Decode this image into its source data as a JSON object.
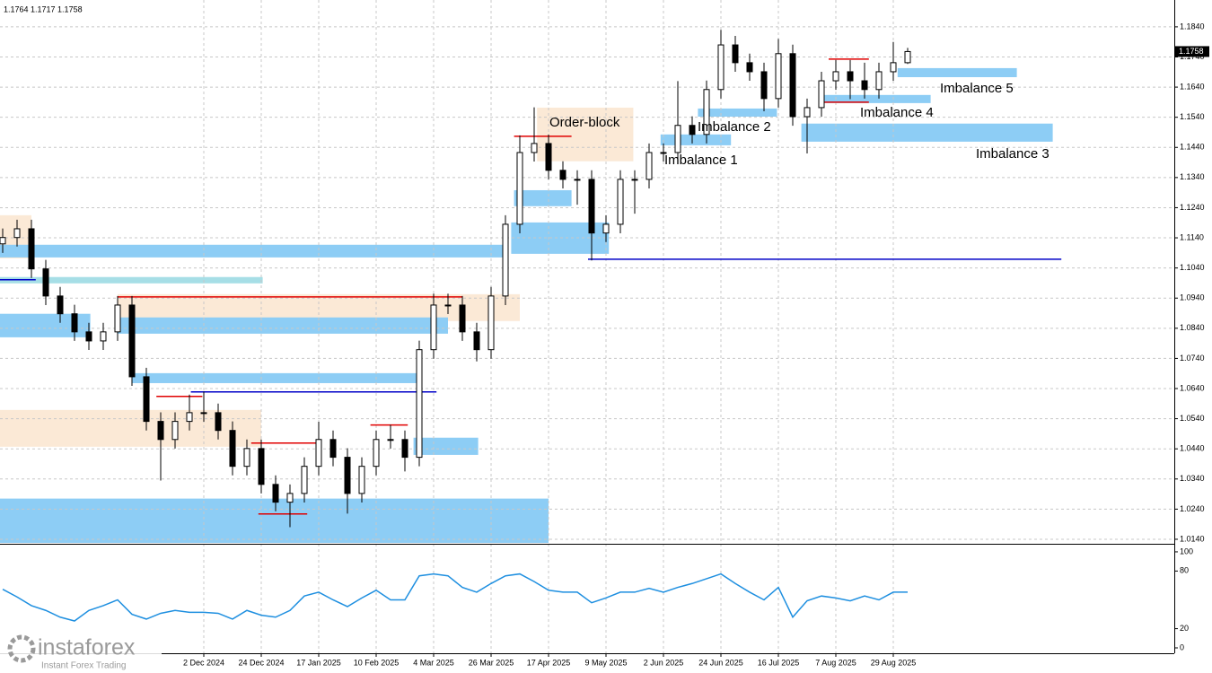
{
  "chart_data": [
    {
      "type": "candlestick",
      "header": "1.1764 1.1717 1.1758",
      "color": "#000000",
      "grid": true,
      "categories": [
        null,
        null,
        null,
        null,
        null,
        null,
        null,
        null,
        null,
        null,
        null,
        null,
        null,
        null,
        "2 Dec 2024",
        null,
        null,
        null,
        "24 Dec 2024",
        null,
        null,
        null,
        "17 Jan 2025",
        null,
        null,
        null,
        "10 Feb 2025",
        null,
        null,
        null,
        "4 Mar 2025",
        null,
        null,
        null,
        "26 Mar 2025",
        null,
        null,
        null,
        "17 Apr 2025",
        null,
        null,
        null,
        "9 May 2025",
        null,
        null,
        null,
        "2 Jun 2025",
        null,
        null,
        null,
        "24 Jun 2025",
        null,
        null,
        null,
        "16 Jul 2025",
        null,
        null,
        null,
        "7 Aug 2025",
        null,
        null,
        null,
        "29 Aug 2025",
        null
      ],
      "open": [
        1.112,
        1.1141,
        1.117,
        1.1037,
        1.0947,
        1.0888,
        1.0828,
        1.0798,
        1.0828,
        1.0917,
        1.0679,
        1.0531,
        1.0471,
        1.0531,
        1.056,
        1.056,
        1.0501,
        1.0382,
        1.0441,
        1.0322,
        1.0263,
        1.0292,
        1.0382,
        1.0471,
        1.0412,
        1.0292,
        1.0382,
        1.0471,
        1.0471,
        1.0412,
        1.0769,
        1.0917,
        1.0917,
        1.0828,
        1.0769,
        1.0947,
        1.1185,
        1.1423,
        1.1453,
        1.1364,
        1.1334,
        1.1334,
        1.1156,
        1.1185,
        1.1334,
        1.1334,
        1.1423,
        1.1423,
        1.1513,
        1.1483,
        1.1632,
        1.178,
        1.1721,
        1.1691,
        1.1602,
        1.1751,
        1.1542,
        1.1572,
        1.1661,
        1.1691,
        1.1661,
        1.1632,
        1.1691,
        1.1721
      ],
      "high": [
        1.1171,
        1.12,
        1.12,
        1.1067,
        1.0977,
        1.0918,
        1.0858,
        1.0858,
        1.0947,
        1.0947,
        1.0709,
        1.0561,
        1.0561,
        1.062,
        1.063,
        1.059,
        1.0531,
        1.0471,
        1.0471,
        1.0352,
        1.0322,
        1.0412,
        1.053,
        1.0501,
        1.0442,
        1.0412,
        1.0501,
        1.052,
        1.0501,
        1.0799,
        1.0955,
        1.0955,
        1.0947,
        1.0858,
        1.0977,
        1.1215,
        1.148,
        1.1573,
        1.1483,
        1.1394,
        1.1364,
        1.1364,
        1.1215,
        1.1364,
        1.1364,
        1.1453,
        1.1453,
        1.166,
        1.1543,
        1.1662,
        1.183,
        1.181,
        1.1751,
        1.1721,
        1.18,
        1.1781,
        1.1602,
        1.1691,
        1.173,
        1.173,
        1.1721,
        1.1721,
        1.179,
        1.177
      ],
      "low": [
        1.109,
        1.1111,
        1.1007,
        1.0917,
        1.0858,
        1.0798,
        1.0768,
        1.0768,
        1.0798,
        1.0649,
        1.0501,
        1.0335,
        1.0441,
        1.0501,
        1.053,
        1.0471,
        1.0352,
        1.0352,
        1.0292,
        1.0233,
        1.018,
        1.0262,
        1.0352,
        1.0382,
        1.0225,
        1.0262,
        1.0352,
        1.0441,
        1.0365,
        1.0382,
        1.0739,
        1.0887,
        1.0798,
        1.073,
        1.0739,
        1.0917,
        1.1155,
        1.1393,
        1.1334,
        1.1304,
        1.125,
        1.1065,
        1.1126,
        1.1155,
        1.122,
        1.1304,
        1.1393,
        1.1393,
        1.1453,
        1.1453,
        1.1602,
        1.1691,
        1.1661,
        1.156,
        1.1572,
        1.1512,
        1.142,
        1.1542,
        1.1631,
        1.16,
        1.1602,
        1.1602,
        1.1661,
        1.1717
      ],
      "close": [
        1.1141,
        1.117,
        1.1037,
        1.0947,
        1.0888,
        1.0828,
        1.0798,
        1.0828,
        1.0917,
        1.0679,
        1.0531,
        1.0471,
        1.0531,
        1.056,
        1.056,
        1.0501,
        1.0382,
        1.0441,
        1.0322,
        1.0263,
        1.0292,
        1.0382,
        1.0471,
        1.0412,
        1.0292,
        1.0382,
        1.0471,
        1.0471,
        1.0412,
        1.0769,
        1.0917,
        1.0917,
        1.0828,
        1.0769,
        1.0947,
        1.1185,
        1.1423,
        1.1453,
        1.1364,
        1.1334,
        1.1334,
        1.1156,
        1.1185,
        1.1334,
        1.1334,
        1.1423,
        1.1423,
        1.1513,
        1.1483,
        1.1632,
        1.178,
        1.1721,
        1.1691,
        1.1602,
        1.1751,
        1.1542,
        1.1572,
        1.1661,
        1.1691,
        1.1661,
        1.1632,
        1.1691,
        1.1721,
        1.1758
      ],
      "current_price": {
        "value": 1.1758,
        "label": "1.1758"
      },
      "ylim": [
        1.0128,
        1.1929
      ],
      "yticks": [
        {
          "value": 1.014,
          "label": "1.0140"
        },
        {
          "value": 1.024,
          "label": "1.0240"
        },
        {
          "value": 1.034,
          "label": "1.0340"
        },
        {
          "value": 1.044,
          "label": "1.0440"
        },
        {
          "value": 1.054,
          "label": "1.0540"
        },
        {
          "value": 1.064,
          "label": "1.0640"
        },
        {
          "value": 1.074,
          "label": "1.0740"
        },
        {
          "value": 1.084,
          "label": "1.0840"
        },
        {
          "value": 1.094,
          "label": "1.0940"
        },
        {
          "value": 1.104,
          "label": "1.1040"
        },
        {
          "value": 1.114,
          "label": "1.1140"
        },
        {
          "value": 1.124,
          "label": "1.1240"
        },
        {
          "value": 1.134,
          "label": "1.1340"
        },
        {
          "value": 1.144,
          "label": "1.1440"
        },
        {
          "value": 1.154,
          "label": "1.1540"
        },
        {
          "value": 1.164,
          "label": "1.1640"
        },
        {
          "value": 1.174,
          "label": "1.1740"
        },
        {
          "value": 1.184,
          "label": "1.1840"
        }
      ],
      "zones": [
        {
          "low": 1.0128,
          "high": 1.0275,
          "from": -0.2,
          "to": 38,
          "color": "#8dcdf5"
        },
        {
          "low": 1.0447,
          "high": 1.0569,
          "from": -0.2,
          "to": 18,
          "color": "#fbe9d6"
        },
        {
          "low": 1.0864,
          "high": 1.0953,
          "from": 8,
          "to": 36,
          "color": "#fbe9d6"
        },
        {
          "low": 1.1072,
          "high": 1.1215,
          "from": -0.2,
          "to": 2,
          "color": "#fbe9d6"
        },
        {
          "low": 1.1394,
          "high": 1.1572,
          "from": 37.2,
          "to": 43.9,
          "color": "#fbe9d6",
          "label": "Order-block"
        },
        {
          "low": 1.1075,
          "high": 1.1117,
          "from": -0.2,
          "to": 34.8,
          "color": "#8dcdf5"
        },
        {
          "low": 1.1087,
          "high": 1.1191,
          "from": 35.4,
          "to": 42.2,
          "color": "#8dcdf5"
        },
        {
          "low": 1.1245,
          "high": 1.1298,
          "from": 35.6,
          "to": 39.6,
          "color": "#8dcdf5"
        },
        {
          "low": 1.0989,
          "high": 1.101,
          "from": -0.2,
          "to": 18.1,
          "color": "#a6dee6"
        },
        {
          "low": 1.081,
          "high": 1.0888,
          "from": -0.2,
          "to": 6.1,
          "color": "#8dcdf5"
        },
        {
          "low": 1.0822,
          "high": 1.0876,
          "from": 8,
          "to": 31,
          "color": "#8dcdf5"
        },
        {
          "low": 1.0658,
          "high": 1.0691,
          "from": 9,
          "to": 29,
          "color": "#8dcdf5"
        },
        {
          "low": 1.042,
          "high": 1.0477,
          "from": 28.6,
          "to": 33.1,
          "color": "#8dcdf5"
        },
        {
          "low": 1.1447,
          "high": 1.1483,
          "from": 45.8,
          "to": 50.7,
          "color": "#8dcdf5",
          "label": "Imbalance 1"
        },
        {
          "low": 1.1542,
          "high": 1.1569,
          "from": 48.4,
          "to": 53.9,
          "color": "#8dcdf5",
          "label": "Imbalance 2"
        },
        {
          "low": 1.1459,
          "high": 1.1519,
          "from": 55.6,
          "to": 73.1,
          "color": "#8dcdf5",
          "label": "Imbalance 3"
        },
        {
          "low": 1.1587,
          "high": 1.1614,
          "from": 56.9,
          "to": 64.6,
          "color": "#8dcdf5",
          "label": "Imbalance 4"
        },
        {
          "low": 1.1673,
          "high": 1.1703,
          "from": 62.3,
          "to": 70.6,
          "color": "#8dcdf5",
          "label": "Imbalance 5"
        }
      ],
      "lines": [
        {
          "price": 1.1069,
          "from": 40.75,
          "to": 73.7,
          "color": "#0000c8"
        },
        {
          "price": 1.0629,
          "from": 13.1,
          "to": 30.2,
          "color": "#0000c8"
        },
        {
          "price": 1.1001,
          "from": -0.2,
          "to": 2.3,
          "color": "#0000c8"
        },
        {
          "price": 1.1477,
          "from": 35.6,
          "to": 39.6,
          "color": "#e00000"
        },
        {
          "price": 1.1733,
          "from": 57.5,
          "to": 60.3,
          "color": "#e00000"
        },
        {
          "price": 1.159,
          "from": 57,
          "to": 60.3,
          "color": "#e00000"
        },
        {
          "price": 1.0944,
          "from": 8,
          "to": 32,
          "color": "#e00000"
        },
        {
          "price": 1.0614,
          "from": 10.7,
          "to": 13.9,
          "color": "#e00000"
        },
        {
          "price": 1.0519,
          "from": 25.6,
          "to": 28.2,
          "color": "#e00000"
        },
        {
          "price": 1.0224,
          "from": 17.8,
          "to": 21.2,
          "color": "#e00000"
        },
        {
          "price": 1.0459,
          "from": 17.3,
          "to": 21.8,
          "color": "#e00000"
        }
      ]
    },
    {
      "type": "line",
      "color": "#1e8fe0",
      "ylim": [
        -5.6,
        106.5
      ],
      "yticks": [
        0,
        20,
        80,
        100
      ],
      "values": [
        61,
        53,
        44,
        39,
        32,
        28,
        39,
        44,
        50,
        35,
        30,
        36,
        39,
        37,
        37,
        36,
        30,
        39,
        34,
        32,
        39,
        54,
        58,
        50,
        43,
        52,
        60,
        50,
        50,
        75,
        77,
        75,
        63,
        58,
        67,
        75,
        77,
        69,
        60,
        58,
        58,
        47,
        52,
        58,
        58,
        62,
        58,
        63,
        67,
        72,
        77,
        67,
        58,
        50,
        63,
        32,
        49,
        54,
        52,
        49,
        54,
        50,
        58,
        58
      ]
    }
  ],
  "logo": {
    "name": "instaforex",
    "tagline": "Instant Forex Trading"
  }
}
